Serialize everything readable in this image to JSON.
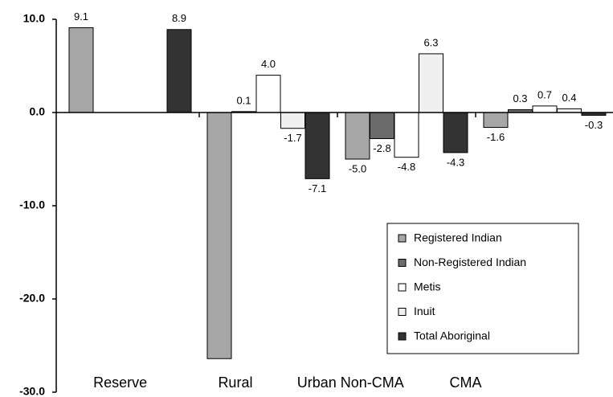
{
  "chart_data": {
    "type": "bar",
    "categories": [
      "Reserve",
      "Rural",
      "Urban Non-CMA",
      "CMA"
    ],
    "series": [
      {
        "name": "Registered Indian",
        "color": "#a6a6a6",
        "values": [
          9.1,
          -26.4,
          -5.0,
          -1.6
        ],
        "value_labels": [
          "9.1",
          null,
          "-5.0",
          "-1.6"
        ]
      },
      {
        "name": "Non-Registered Indian",
        "color": "#6b6b6b",
        "values": [
          null,
          0.1,
          -2.8,
          0.3
        ],
        "value_labels": [
          null,
          "0.1",
          "-2.8",
          "0.3"
        ]
      },
      {
        "name": "Metis",
        "color": "#ffffff",
        "values": [
          null,
          4.0,
          -4.8,
          0.7
        ],
        "value_labels": [
          null,
          "4.0",
          "-4.8",
          "0.7"
        ]
      },
      {
        "name": "Inuit",
        "color": "#f0f0f0",
        "values": [
          null,
          -1.7,
          6.3,
          0.4
        ],
        "value_labels": [
          null,
          "-1.7",
          "6.3",
          "0.4"
        ]
      },
      {
        "name": "Total Aboriginal",
        "color": "#333333",
        "values": [
          8.9,
          -7.1,
          -4.3,
          -0.3
        ],
        "value_labels": [
          "8.9",
          "-7.1",
          "-4.3",
          "-0.3"
        ]
      }
    ],
    "ylim": [
      -30,
      10
    ],
    "yticks": [
      {
        "value": 10,
        "label": "10.0"
      },
      {
        "value": 0,
        "label": "0.0"
      },
      {
        "value": -10,
        "label": "-10.0"
      },
      {
        "value": -20,
        "label": "-20.0"
      },
      {
        "value": -30,
        "label": "-30.0"
      }
    ],
    "legend": "lower-right"
  }
}
